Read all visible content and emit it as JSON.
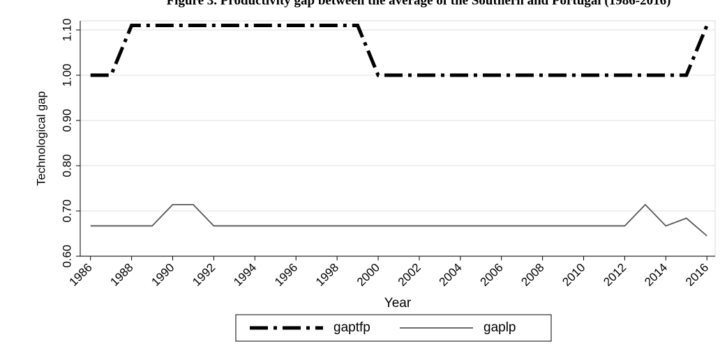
{
  "chart_data": {
    "type": "line",
    "title": "Figure 3. Productivity gap between the average of the Southern and Portugal (1986-2016)",
    "x_label": "Year",
    "y_label": "Technological gap",
    "x": [
      1986,
      1987,
      1988,
      1989,
      1990,
      1991,
      1992,
      1993,
      1994,
      1995,
      1996,
      1997,
      1998,
      1999,
      2000,
      2001,
      2002,
      2003,
      2004,
      2005,
      2006,
      2007,
      2008,
      2009,
      2010,
      2011,
      2012,
      2013,
      2014,
      2015,
      2016
    ],
    "series": [
      {
        "name": "gaptfp",
        "color": "#000000",
        "style": "dash-dot",
        "values": [
          1.0,
          1.0,
          1.11,
          1.11,
          1.11,
          1.11,
          1.11,
          1.11,
          1.11,
          1.11,
          1.11,
          1.11,
          1.11,
          1.11,
          1.0,
          1.0,
          1.0,
          1.0,
          1.0,
          1.0,
          1.0,
          1.0,
          1.0,
          1.0,
          1.0,
          1.0,
          1.0,
          1.0,
          1.0,
          1.0,
          1.11
        ]
      },
      {
        "name": "gaplp",
        "color": "#555555",
        "style": "solid",
        "values": [
          0.667,
          0.667,
          0.667,
          0.667,
          0.714,
          0.714,
          0.667,
          0.667,
          0.667,
          0.667,
          0.667,
          0.667,
          0.667,
          0.667,
          0.667,
          0.667,
          0.667,
          0.667,
          0.667,
          0.667,
          0.667,
          0.667,
          0.667,
          0.667,
          0.667,
          0.667,
          0.667,
          0.714,
          0.667,
          0.684,
          0.645
        ]
      }
    ],
    "xlim": [
      1985.5,
      2016.4
    ],
    "xticks": [
      1986,
      1988,
      1990,
      1992,
      1994,
      1996,
      1998,
      2000,
      2002,
      2004,
      2006,
      2008,
      2010,
      2012,
      2014,
      2016
    ],
    "ylim": [
      0.6,
      1.12
    ],
    "yticks": [
      {
        "value": 0.6,
        "label": "0.60"
      },
      {
        "value": 0.7,
        "label": "0.70"
      },
      {
        "value": 0.8,
        "label": "0.80"
      },
      {
        "value": 0.9,
        "label": "0.90"
      },
      {
        "value": 1.0,
        "label": "1.00"
      },
      {
        "value": 1.1,
        "label": "1.10"
      }
    ],
    "grid": true,
    "legend": "bottom"
  }
}
